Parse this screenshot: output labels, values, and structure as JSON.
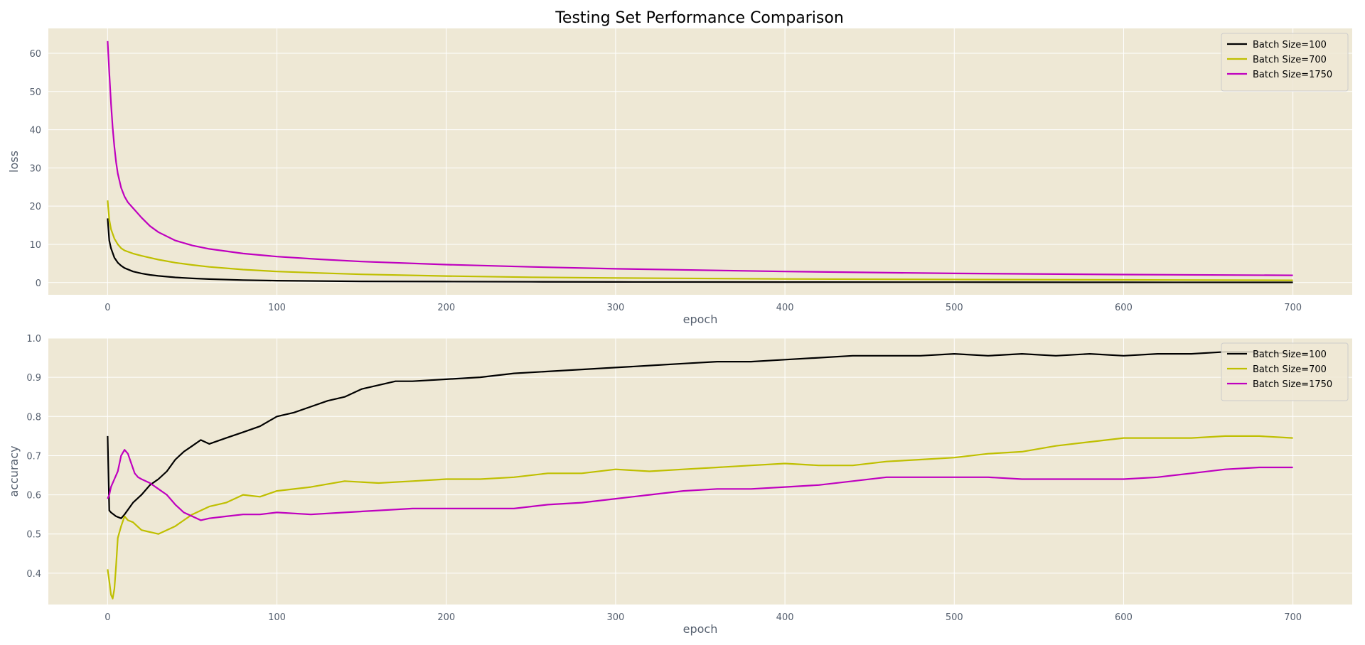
{
  "figure": {
    "title": "Testing Set Performance Comparison",
    "background": "#ffffff",
    "axes_facecolor": "#eee8d5",
    "grid_color": "#ffffff"
  },
  "chart_data": [
    {
      "type": "line",
      "title": "Testing Set Performance Comparison",
      "xlabel": "epoch",
      "ylabel": "loss",
      "xlim": [
        -35,
        735
      ],
      "ylim": [
        -3.2,
        66.5
      ],
      "xticks": [
        0,
        100,
        200,
        300,
        400,
        500,
        600,
        700
      ],
      "yticks": [
        0,
        10,
        20,
        30,
        40,
        50,
        60
      ],
      "grid": true,
      "legend": "top-right",
      "series": [
        {
          "name": "Batch Size=100",
          "color": "#000000",
          "x": [
            0,
            1,
            2,
            4,
            6,
            8,
            10,
            15,
            20,
            25,
            30,
            40,
            50,
            60,
            80,
            100,
            125,
            150,
            200,
            250,
            300,
            400,
            500,
            600,
            700
          ],
          "values": [
            16.8,
            11.0,
            9.0,
            6.5,
            5.2,
            4.4,
            3.8,
            2.9,
            2.4,
            2.0,
            1.75,
            1.35,
            1.1,
            0.9,
            0.65,
            0.5,
            0.4,
            0.32,
            0.25,
            0.2,
            0.16,
            0.12,
            0.1,
            0.08,
            0.06
          ]
        },
        {
          "name": "Batch Size=700",
          "color": "#bfbf00",
          "x": [
            0,
            1,
            2,
            4,
            6,
            8,
            10,
            15,
            20,
            25,
            30,
            40,
            50,
            60,
            80,
            100,
            125,
            150,
            200,
            250,
            300,
            400,
            500,
            600,
            700
          ],
          "values": [
            21.5,
            16.5,
            14.0,
            11.5,
            10.0,
            9.0,
            8.4,
            7.6,
            7.0,
            6.5,
            6.0,
            5.2,
            4.6,
            4.1,
            3.4,
            2.9,
            2.5,
            2.15,
            1.7,
            1.4,
            1.2,
            0.95,
            0.8,
            0.7,
            0.6
          ]
        },
        {
          "name": "Batch Size=1750",
          "color": "#bf00bf",
          "x": [
            0,
            1,
            2,
            3,
            4,
            5,
            6,
            8,
            10,
            12,
            15,
            20,
            25,
            30,
            40,
            50,
            60,
            80,
            100,
            125,
            150,
            200,
            250,
            300,
            400,
            500,
            600,
            700
          ],
          "values": [
            63.2,
            55.0,
            47.0,
            40.5,
            35.5,
            31.5,
            28.5,
            24.8,
            22.5,
            21.0,
            19.5,
            17.0,
            14.8,
            13.2,
            11.0,
            9.7,
            8.8,
            7.6,
            6.8,
            6.1,
            5.5,
            4.7,
            4.1,
            3.6,
            2.9,
            2.4,
            2.1,
            1.9
          ]
        }
      ]
    },
    {
      "type": "line",
      "title": "",
      "xlabel": "epoch",
      "ylabel": "accuracy",
      "xlim": [
        -35,
        735
      ],
      "ylim": [
        0.32,
        1.0
      ],
      "xticks": [
        0,
        100,
        200,
        300,
        400,
        500,
        600,
        700
      ],
      "yticks": [
        0.4,
        0.5,
        0.6,
        0.7,
        0.8,
        0.9,
        1.0
      ],
      "grid": true,
      "legend": "top-right",
      "series": [
        {
          "name": "Batch Size=100",
          "color": "#000000",
          "x": [
            0,
            1,
            2,
            5,
            8,
            10,
            15,
            20,
            25,
            30,
            35,
            40,
            45,
            50,
            55,
            60,
            70,
            80,
            90,
            100,
            110,
            120,
            130,
            140,
            150,
            160,
            170,
            180,
            200,
            220,
            240,
            260,
            280,
            300,
            320,
            340,
            360,
            380,
            400,
            420,
            440,
            460,
            480,
            500,
            520,
            540,
            560,
            580,
            600,
            620,
            640,
            660,
            680,
            700
          ],
          "values": [
            0.75,
            0.56,
            0.555,
            0.545,
            0.54,
            0.55,
            0.58,
            0.6,
            0.625,
            0.64,
            0.66,
            0.69,
            0.71,
            0.725,
            0.74,
            0.73,
            0.745,
            0.76,
            0.775,
            0.8,
            0.81,
            0.825,
            0.84,
            0.85,
            0.87,
            0.88,
            0.89,
            0.89,
            0.895,
            0.9,
            0.91,
            0.915,
            0.92,
            0.925,
            0.93,
            0.935,
            0.94,
            0.94,
            0.945,
            0.95,
            0.955,
            0.955,
            0.955,
            0.96,
            0.955,
            0.96,
            0.955,
            0.96,
            0.955,
            0.96,
            0.96,
            0.965,
            0.965,
            0.96
          ]
        },
        {
          "name": "Batch Size=700",
          "color": "#bfbf00",
          "x": [
            0,
            1,
            2,
            3,
            4,
            5,
            6,
            8,
            10,
            12,
            15,
            20,
            25,
            30,
            35,
            40,
            45,
            50,
            60,
            70,
            80,
            90,
            100,
            120,
            140,
            160,
            180,
            200,
            220,
            240,
            260,
            280,
            300,
            320,
            340,
            360,
            380,
            400,
            420,
            440,
            460,
            480,
            500,
            520,
            540,
            560,
            580,
            600,
            620,
            640,
            660,
            680,
            700
          ],
          "values": [
            0.41,
            0.38,
            0.345,
            0.335,
            0.36,
            0.42,
            0.49,
            0.52,
            0.545,
            0.535,
            0.53,
            0.51,
            0.505,
            0.5,
            0.51,
            0.52,
            0.535,
            0.55,
            0.57,
            0.58,
            0.6,
            0.595,
            0.61,
            0.62,
            0.635,
            0.63,
            0.635,
            0.64,
            0.64,
            0.645,
            0.655,
            0.655,
            0.665,
            0.66,
            0.665,
            0.67,
            0.675,
            0.68,
            0.675,
            0.675,
            0.685,
            0.69,
            0.695,
            0.705,
            0.71,
            0.725,
            0.735,
            0.745,
            0.745,
            0.745,
            0.75,
            0.75,
            0.745
          ]
        },
        {
          "name": "Batch Size=1750",
          "color": "#bf00bf",
          "x": [
            0,
            1,
            2,
            4,
            6,
            8,
            10,
            12,
            14,
            16,
            18,
            20,
            25,
            30,
            35,
            40,
            45,
            50,
            55,
            60,
            70,
            80,
            90,
            100,
            120,
            140,
            160,
            180,
            200,
            220,
            240,
            260,
            280,
            300,
            320,
            340,
            360,
            380,
            400,
            420,
            440,
            460,
            480,
            500,
            520,
            540,
            560,
            580,
            600,
            620,
            640,
            660,
            680,
            700
          ],
          "values": [
            0.59,
            0.6,
            0.62,
            0.64,
            0.66,
            0.7,
            0.715,
            0.705,
            0.68,
            0.655,
            0.645,
            0.64,
            0.63,
            0.615,
            0.6,
            0.575,
            0.555,
            0.545,
            0.535,
            0.54,
            0.545,
            0.55,
            0.55,
            0.555,
            0.55,
            0.555,
            0.56,
            0.565,
            0.565,
            0.565,
            0.565,
            0.575,
            0.58,
            0.59,
            0.6,
            0.61,
            0.615,
            0.615,
            0.62,
            0.625,
            0.635,
            0.645,
            0.645,
            0.645,
            0.645,
            0.64,
            0.64,
            0.64,
            0.64,
            0.645,
            0.655,
            0.665,
            0.67,
            0.67
          ]
        }
      ]
    }
  ]
}
